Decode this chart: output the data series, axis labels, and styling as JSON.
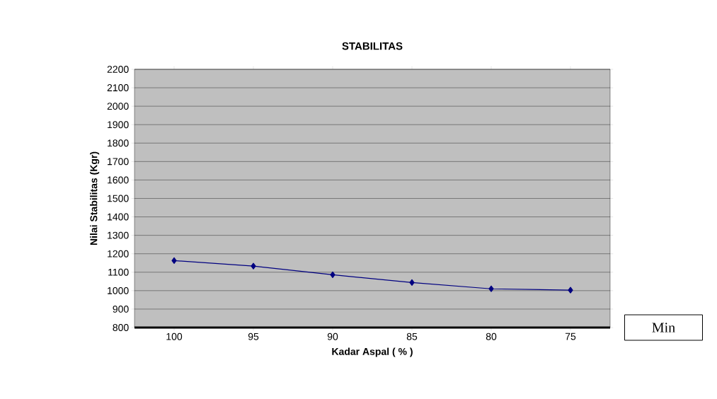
{
  "chart_data": {
    "type": "line",
    "title": "STABILITAS",
    "xlabel": "Kadar Aspal ( % )",
    "ylabel": "Nilai Stabilitas (Kgr)",
    "categories": [
      "100",
      "95",
      "90",
      "85",
      "80",
      "75"
    ],
    "series": [
      {
        "color": "#000080",
        "values": [
          1163,
          1133,
          1086,
          1044,
          1010,
          1003
        ]
      }
    ],
    "ylim": [
      800,
      2200
    ],
    "yticks": [
      800,
      900,
      1000,
      1100,
      1200,
      1300,
      1400,
      1500,
      1600,
      1700,
      1800,
      1900,
      2000,
      2100,
      2200
    ],
    "grid": "y",
    "marker": "diamond",
    "line_style": "solid",
    "annotations": [
      "Min"
    ]
  }
}
